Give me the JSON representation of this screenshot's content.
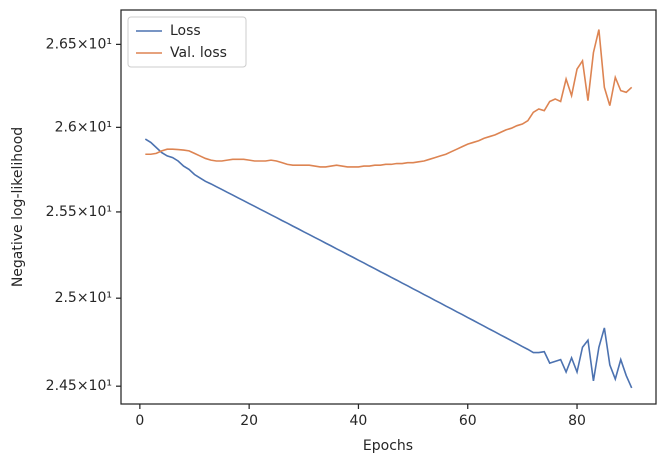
{
  "chart_data": {
    "type": "line",
    "xlabel": "Epochs",
    "ylabel": "Negative log-likelihood",
    "x": [
      1,
      2,
      3,
      4,
      5,
      6,
      7,
      8,
      9,
      10,
      11,
      12,
      13,
      14,
      15,
      16,
      17,
      18,
      19,
      20,
      21,
      22,
      23,
      24,
      25,
      26,
      27,
      28,
      29,
      30,
      31,
      32,
      33,
      34,
      35,
      36,
      37,
      38,
      39,
      40,
      41,
      42,
      43,
      44,
      45,
      46,
      47,
      48,
      49,
      50,
      51,
      52,
      53,
      54,
      55,
      56,
      57,
      58,
      59,
      60,
      61,
      62,
      63,
      64,
      65,
      66,
      67,
      68,
      69,
      70,
      71,
      72,
      73,
      74,
      75,
      76,
      77,
      78,
      79,
      80,
      81,
      82,
      83,
      84,
      85,
      86,
      87,
      88,
      89,
      90
    ],
    "series": [
      {
        "name": "Loss",
        "color": "#4c72b0",
        "values": [
          25.93,
          25.91,
          25.88,
          25.85,
          25.83,
          25.82,
          25.8,
          25.77,
          25.75,
          25.72,
          25.7,
          25.68,
          25.665,
          25.648,
          25.632,
          25.615,
          25.599,
          25.582,
          25.566,
          25.549,
          25.533,
          25.516,
          25.5,
          25.483,
          25.467,
          25.45,
          25.434,
          25.417,
          25.401,
          25.384,
          25.368,
          25.351,
          25.335,
          25.318,
          25.302,
          25.285,
          25.269,
          25.252,
          25.236,
          25.219,
          25.203,
          25.186,
          25.17,
          25.153,
          25.137,
          25.12,
          25.104,
          25.087,
          25.071,
          25.054,
          25.038,
          25.021,
          25.005,
          24.988,
          24.972,
          24.955,
          24.939,
          24.922,
          24.906,
          24.889,
          24.873,
          24.856,
          24.84,
          24.823,
          24.807,
          24.79,
          24.774,
          24.757,
          24.741,
          24.724,
          24.708,
          24.69,
          24.69,
          24.695,
          24.63,
          24.64,
          24.65,
          24.58,
          24.66,
          24.58,
          24.72,
          24.76,
          24.53,
          24.72,
          24.83,
          24.62,
          24.54,
          24.65,
          24.56,
          24.49
        ]
      },
      {
        "name": "Val. loss",
        "color": "#dd8452",
        "values": [
          25.84,
          25.84,
          25.845,
          25.86,
          25.87,
          25.87,
          25.868,
          25.865,
          25.86,
          25.845,
          25.83,
          25.815,
          25.805,
          25.8,
          25.8,
          25.805,
          25.81,
          25.81,
          25.81,
          25.805,
          25.8,
          25.8,
          25.8,
          25.805,
          25.8,
          25.79,
          25.78,
          25.775,
          25.775,
          25.775,
          25.775,
          25.77,
          25.765,
          25.765,
          25.77,
          25.775,
          25.77,
          25.765,
          25.765,
          25.765,
          25.77,
          25.77,
          25.775,
          25.775,
          25.78,
          25.78,
          25.785,
          25.785,
          25.79,
          25.79,
          25.795,
          25.8,
          25.81,
          25.82,
          25.83,
          25.84,
          25.855,
          25.87,
          25.885,
          25.9,
          25.91,
          25.92,
          25.935,
          25.945,
          25.955,
          25.97,
          25.985,
          25.995,
          26.01,
          26.02,
          26.04,
          26.09,
          26.11,
          26.1,
          26.155,
          26.17,
          26.155,
          26.29,
          26.19,
          26.35,
          26.4,
          26.16,
          26.45,
          26.59,
          26.24,
          26.13,
          26.3,
          26.22,
          26.21,
          26.24
        ]
      }
    ],
    "xlim": [
      -3.45,
      94.45
    ],
    "xticks": [
      0,
      20,
      40,
      60,
      80
    ],
    "ylim": [
      24.4,
      26.71
    ],
    "ylog": true,
    "yticks": [
      {
        "value": 24.5,
        "label": "2.45×10¹"
      },
      {
        "value": 25,
        "label": "2.5×10¹"
      },
      {
        "value": 25.5,
        "label": "2.55×10¹"
      },
      {
        "value": 26,
        "label": "2.6×10¹"
      },
      {
        "value": 26.5,
        "label": "2.65×10¹"
      }
    ],
    "legend": "upper left"
  }
}
